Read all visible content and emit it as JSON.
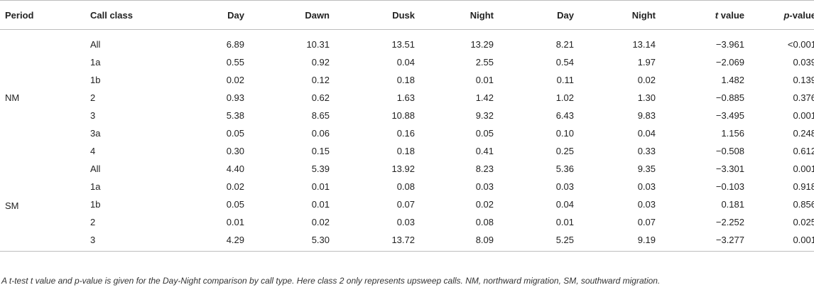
{
  "table": {
    "headers": [
      "Period",
      "Call class",
      "Day",
      "Dawn",
      "Dusk",
      "Night",
      "Day",
      "Night",
      "t value",
      "p-value"
    ],
    "groups": [
      {
        "period": "NM",
        "rows": [
          [
            "All",
            "6.89",
            "10.31",
            "13.51",
            "13.29",
            "8.21",
            "13.14",
            "−3.961",
            "<0.001"
          ],
          [
            "1a",
            "0.55",
            "0.92",
            "0.04",
            "2.55",
            "0.54",
            "1.97",
            "−2.069",
            "0.039"
          ],
          [
            "1b",
            "0.02",
            "0.12",
            "0.18",
            "0.01",
            "0.11",
            "0.02",
            "1.482",
            "0.139"
          ],
          [
            "2",
            "0.93",
            "0.62",
            "1.63",
            "1.42",
            "1.02",
            "1.30",
            "−0.885",
            "0.376"
          ],
          [
            "3",
            "5.38",
            "8.65",
            "10.88",
            "9.32",
            "6.43",
            "9.83",
            "−3.495",
            "0.001"
          ],
          [
            "3a",
            "0.05",
            "0.06",
            "0.16",
            "0.05",
            "0.10",
            "0.04",
            "1.156",
            "0.248"
          ],
          [
            "4",
            "0.30",
            "0.15",
            "0.18",
            "0.41",
            "0.25",
            "0.33",
            "−0.508",
            "0.612"
          ]
        ]
      },
      {
        "period": "SM",
        "rows": [
          [
            "All",
            "4.40",
            "5.39",
            "13.92",
            "8.23",
            "5.36",
            "9.35",
            "−3.301",
            "0.001"
          ],
          [
            "1a",
            "0.02",
            "0.01",
            "0.08",
            "0.03",
            "0.03",
            "0.03",
            "−0.103",
            "0.918"
          ],
          [
            "1b",
            "0.05",
            "0.01",
            "0.07",
            "0.02",
            "0.04",
            "0.03",
            "0.181",
            "0.856"
          ],
          [
            "2",
            "0.01",
            "0.02",
            "0.03",
            "0.08",
            "0.01",
            "0.07",
            "−2.252",
            "0.025"
          ],
          [
            "3",
            "4.29",
            "5.30",
            "13.72",
            "8.09",
            "5.25",
            "9.19",
            "−3.277",
            "0.001"
          ]
        ]
      }
    ]
  },
  "footnote": "A t-test t value and p-value is given for the Day-Night comparison by call type. Here class 2 only represents upsweep calls. NM, northward migration, SM, southward migration."
}
